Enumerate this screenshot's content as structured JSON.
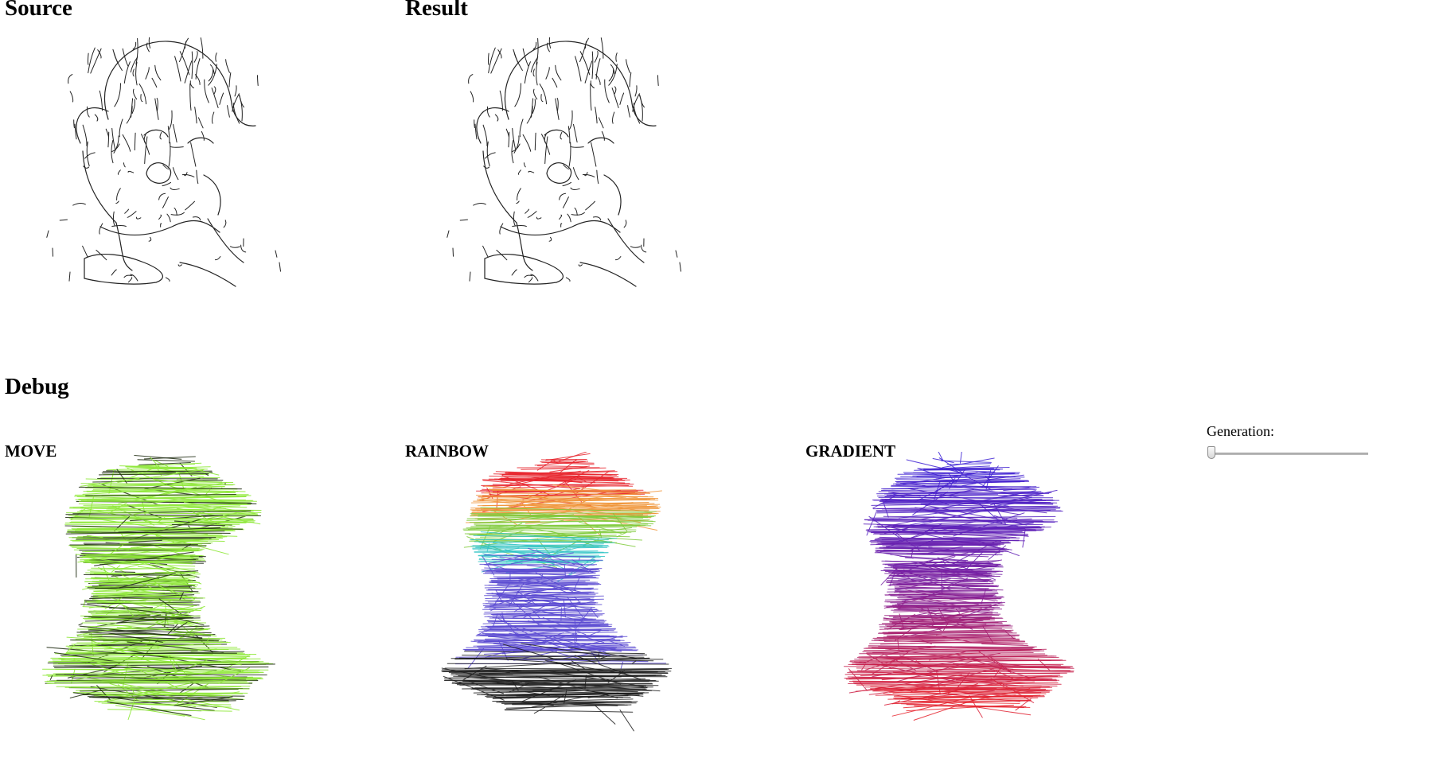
{
  "headings": {
    "source": "Source",
    "result": "Result",
    "debug": "Debug",
    "move": "MOVE",
    "rainbow": "RAINBOW",
    "gradient": "GRADIENT"
  },
  "control": {
    "generation_label": "Generation:",
    "generation_value": 0,
    "generation_min": 0,
    "generation_max": 100
  },
  "colors": {
    "stroke": "#222222",
    "move": "#8fe83a",
    "move_dark": "#1e2b12",
    "rainbow": [
      "#e8232b",
      "#f0953a",
      "#7fca3b",
      "#33c4c6",
      "#5b4ad1",
      "#1d1d1d"
    ],
    "gradient_top": "#3b22d6",
    "gradient_mid": "#7b1f9e",
    "gradient_bottom": "#e8232b"
  }
}
